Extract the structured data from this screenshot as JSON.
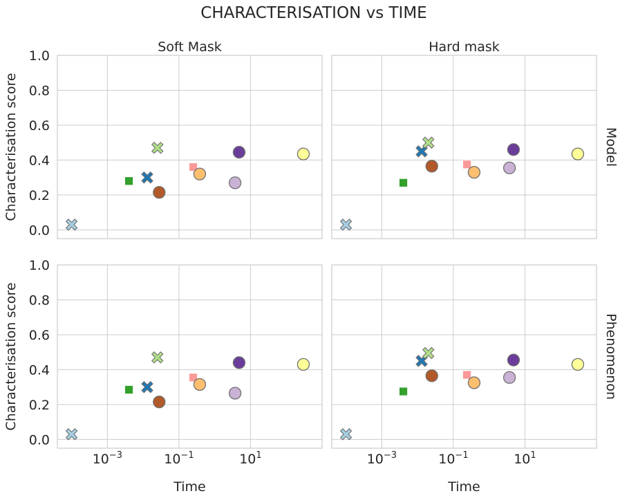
{
  "chart_data": {
    "type": "scatter",
    "title": "CHARACTERISATION vs TIME",
    "xlabel": "Time",
    "ylabel": "Characterisation score",
    "xscale": "log",
    "xlim": [
      4e-05,
      1000
    ],
    "ylim": [
      -0.05,
      1.0
    ],
    "x_ticks": [
      0.001,
      0.1,
      10
    ],
    "x_tick_labels": [
      {
        "base": "10",
        "exp": "−3"
      },
      {
        "base": "10",
        "exp": "−1"
      },
      {
        "base": "10",
        "exp": "1"
      }
    ],
    "y_ticks": [
      0.0,
      0.2,
      0.4,
      0.6,
      0.8,
      1.0
    ],
    "y_tick_labels": [
      "0.0",
      "0.2",
      "0.4",
      "0.6",
      "0.8",
      "1.0"
    ],
    "grid": true,
    "columns": [
      "Soft Mask",
      "Hard mask"
    ],
    "rows": [
      "Model",
      "Phenomenon"
    ],
    "colors": {
      "light_blue": "#a6cee3",
      "dark_blue": "#1f78b4",
      "light_green": "#b2df8a",
      "green": "#33a02c",
      "pink": "#fb9a99",
      "light_orange": "#fdbf6f",
      "brown": "#b15928",
      "light_purple": "#cab2d6",
      "purple": "#6a3d9a",
      "yellow": "#ffff99"
    },
    "panels": [
      {
        "row": "Model",
        "col": "Soft Mask",
        "points": [
          {
            "x": 0.0001,
            "y": 0.03,
            "marker": "x",
            "color": "light_blue"
          },
          {
            "x": 0.004,
            "y": 0.28,
            "marker": "square",
            "color": "green"
          },
          {
            "x": 0.013,
            "y": 0.3,
            "marker": "x",
            "color": "dark_blue"
          },
          {
            "x": 0.025,
            "y": 0.47,
            "marker": "x",
            "color": "light_green"
          },
          {
            "x": 0.028,
            "y": 0.215,
            "marker": "circle",
            "color": "brown"
          },
          {
            "x": 0.25,
            "y": 0.36,
            "marker": "square",
            "color": "pink"
          },
          {
            "x": 0.38,
            "y": 0.32,
            "marker": "circle",
            "color": "light_orange"
          },
          {
            "x": 3.7,
            "y": 0.27,
            "marker": "circle",
            "color": "light_purple"
          },
          {
            "x": 4.8,
            "y": 0.445,
            "marker": "circle",
            "color": "purple"
          },
          {
            "x": 300,
            "y": 0.435,
            "marker": "circle",
            "color": "yellow"
          }
        ]
      },
      {
        "row": "Model",
        "col": "Hard mask",
        "points": [
          {
            "x": 0.0001,
            "y": 0.03,
            "marker": "x",
            "color": "light_blue"
          },
          {
            "x": 0.004,
            "y": 0.27,
            "marker": "square",
            "color": "green"
          },
          {
            "x": 0.013,
            "y": 0.45,
            "marker": "x",
            "color": "dark_blue"
          },
          {
            "x": 0.02,
            "y": 0.5,
            "marker": "x",
            "color": "light_green"
          },
          {
            "x": 0.025,
            "y": 0.365,
            "marker": "circle",
            "color": "brown"
          },
          {
            "x": 0.24,
            "y": 0.375,
            "marker": "square",
            "color": "pink"
          },
          {
            "x": 0.38,
            "y": 0.33,
            "marker": "circle",
            "color": "light_orange"
          },
          {
            "x": 3.7,
            "y": 0.355,
            "marker": "circle",
            "color": "light_purple"
          },
          {
            "x": 4.8,
            "y": 0.46,
            "marker": "circle",
            "color": "purple"
          },
          {
            "x": 300,
            "y": 0.435,
            "marker": "circle",
            "color": "yellow"
          }
        ]
      },
      {
        "row": "Phenomenon",
        "col": "Soft Mask",
        "points": [
          {
            "x": 0.0001,
            "y": 0.03,
            "marker": "x",
            "color": "light_blue"
          },
          {
            "x": 0.004,
            "y": 0.285,
            "marker": "square",
            "color": "green"
          },
          {
            "x": 0.013,
            "y": 0.3,
            "marker": "x",
            "color": "dark_blue"
          },
          {
            "x": 0.025,
            "y": 0.47,
            "marker": "x",
            "color": "light_green"
          },
          {
            "x": 0.028,
            "y": 0.215,
            "marker": "circle",
            "color": "brown"
          },
          {
            "x": 0.25,
            "y": 0.355,
            "marker": "square",
            "color": "pink"
          },
          {
            "x": 0.38,
            "y": 0.315,
            "marker": "circle",
            "color": "light_orange"
          },
          {
            "x": 3.7,
            "y": 0.265,
            "marker": "circle",
            "color": "light_purple"
          },
          {
            "x": 4.8,
            "y": 0.44,
            "marker": "circle",
            "color": "purple"
          },
          {
            "x": 300,
            "y": 0.43,
            "marker": "circle",
            "color": "yellow"
          }
        ]
      },
      {
        "row": "Phenomenon",
        "col": "Hard mask",
        "points": [
          {
            "x": 0.0001,
            "y": 0.03,
            "marker": "x",
            "color": "light_blue"
          },
          {
            "x": 0.004,
            "y": 0.275,
            "marker": "square",
            "color": "green"
          },
          {
            "x": 0.013,
            "y": 0.45,
            "marker": "x",
            "color": "dark_blue"
          },
          {
            "x": 0.02,
            "y": 0.495,
            "marker": "x",
            "color": "light_green"
          },
          {
            "x": 0.025,
            "y": 0.365,
            "marker": "circle",
            "color": "brown"
          },
          {
            "x": 0.24,
            "y": 0.37,
            "marker": "square",
            "color": "pink"
          },
          {
            "x": 0.38,
            "y": 0.325,
            "marker": "circle",
            "color": "light_orange"
          },
          {
            "x": 3.7,
            "y": 0.355,
            "marker": "circle",
            "color": "light_purple"
          },
          {
            "x": 4.8,
            "y": 0.455,
            "marker": "circle",
            "color": "purple"
          },
          {
            "x": 300,
            "y": 0.43,
            "marker": "circle",
            "color": "yellow"
          }
        ]
      }
    ]
  }
}
